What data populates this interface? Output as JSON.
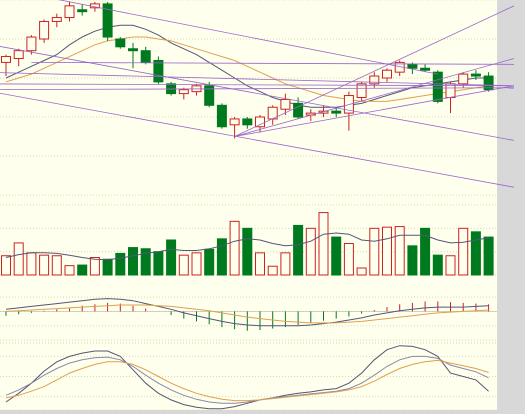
{
  "colors": {
    "background": "#ffffee",
    "frame": "#d8d8d8",
    "grid": "#d9d9b0",
    "up": "#cc2222",
    "down": "#007a1e",
    "ma_fast": "#555577",
    "ma_slow": "#e0a050",
    "trend_line": "#9966cc"
  },
  "chart_data": [
    {
      "type": "candlestick",
      "panel": "price",
      "title": "",
      "xlabel": "",
      "ylabel": "",
      "ylim": [
        0,
        100
      ],
      "grid": true,
      "legend": "none",
      "candles": [
        {
          "o": 68,
          "h": 72,
          "l": 61,
          "c": 71
        },
        {
          "o": 70,
          "h": 75,
          "l": 66,
          "c": 74
        },
        {
          "o": 74,
          "h": 82,
          "l": 72,
          "c": 81
        },
        {
          "o": 80,
          "h": 90,
          "l": 78,
          "c": 89
        },
        {
          "o": 89,
          "h": 93,
          "l": 86,
          "c": 91
        },
        {
          "o": 91,
          "h": 99,
          "l": 89,
          "c": 97
        },
        {
          "o": 95,
          "h": 98,
          "l": 92,
          "c": 94
        },
        {
          "o": 96,
          "h": 99,
          "l": 94,
          "c": 98
        },
        {
          "o": 98,
          "h": 99,
          "l": 79,
          "c": 81
        },
        {
          "o": 80,
          "h": 81,
          "l": 75,
          "c": 76
        },
        {
          "o": 75,
          "h": 78,
          "l": 65,
          "c": 74
        },
        {
          "o": 74,
          "h": 76,
          "l": 67,
          "c": 68
        },
        {
          "o": 69,
          "h": 71,
          "l": 57,
          "c": 58
        },
        {
          "o": 57,
          "h": 58,
          "l": 51,
          "c": 52
        },
        {
          "o": 52,
          "h": 55,
          "l": 49,
          "c": 54
        },
        {
          "o": 53,
          "h": 57,
          "l": 51,
          "c": 56
        },
        {
          "o": 56,
          "h": 58,
          "l": 45,
          "c": 46
        },
        {
          "o": 46,
          "h": 47,
          "l": 34,
          "c": 35
        },
        {
          "o": 36,
          "h": 40,
          "l": 29,
          "c": 39
        },
        {
          "o": 39,
          "h": 40,
          "l": 34,
          "c": 36
        },
        {
          "o": 35,
          "h": 41,
          "l": 32,
          "c": 40
        },
        {
          "o": 39,
          "h": 46,
          "l": 36,
          "c": 45
        },
        {
          "o": 44,
          "h": 52,
          "l": 41,
          "c": 49
        },
        {
          "o": 47,
          "h": 50,
          "l": 39,
          "c": 40
        },
        {
          "o": 41,
          "h": 44,
          "l": 38,
          "c": 42
        },
        {
          "o": 42,
          "h": 46,
          "l": 40,
          "c": 43
        },
        {
          "o": 43,
          "h": 45,
          "l": 40,
          "c": 42
        },
        {
          "o": 42,
          "h": 53,
          "l": 33,
          "c": 51
        },
        {
          "o": 50,
          "h": 58,
          "l": 48,
          "c": 57
        },
        {
          "o": 57,
          "h": 63,
          "l": 55,
          "c": 61
        },
        {
          "o": 60,
          "h": 65,
          "l": 58,
          "c": 64
        },
        {
          "o": 63,
          "h": 69,
          "l": 61,
          "c": 68
        },
        {
          "o": 67,
          "h": 68,
          "l": 62,
          "c": 65
        },
        {
          "o": 65,
          "h": 67,
          "l": 63,
          "c": 64
        },
        {
          "o": 63,
          "h": 64,
          "l": 47,
          "c": 48
        },
        {
          "o": 50,
          "h": 58,
          "l": 42,
          "c": 57
        },
        {
          "o": 57,
          "h": 63,
          "l": 55,
          "c": 62
        },
        {
          "o": 62,
          "h": 64,
          "l": 59,
          "c": 61
        },
        {
          "o": 61,
          "h": 63,
          "l": 53,
          "c": 54
        }
      ],
      "moving_averages": [
        {
          "values": [
            60,
            63,
            66,
            69,
            72,
            77,
            81,
            84,
            86,
            87,
            87,
            85,
            82,
            78,
            75,
            72,
            68,
            64,
            60,
            56,
            53,
            50,
            48,
            46,
            45,
            45,
            45,
            46,
            47,
            49,
            51,
            53,
            55,
            56,
            57,
            58,
            59,
            60,
            60
          ]
        },
        {
          "values": [
            58,
            60,
            62,
            65,
            68,
            71,
            74,
            77,
            79,
            80,
            81,
            81,
            80,
            79,
            77,
            75,
            73,
            71,
            69,
            66,
            63,
            60,
            57,
            55,
            53,
            51,
            50,
            49,
            48,
            48,
            48,
            49,
            50,
            51,
            52,
            53,
            54,
            55,
            56
          ]
        }
      ],
      "trend_lines": [
        {
          "points": [
            [
              -2,
              108
            ],
            [
              34,
              62
            ]
          ]
        },
        {
          "points": [
            [
              -2,
              78
            ],
            [
              40,
              28
            ]
          ]
        },
        {
          "points": [
            [
              -2,
              54
            ],
            [
              40,
              4
            ]
          ]
        },
        {
          "points": [
            [
              -2,
              63
            ],
            [
              40,
              56
            ]
          ]
        },
        {
          "points": [
            [
              -2,
              54
            ],
            [
              40,
              55
            ]
          ]
        },
        {
          "points": [
            [
              -2,
              57
            ],
            [
              40,
              56
            ]
          ]
        },
        {
          "points": [
            [
              18,
              30
            ],
            [
              40,
              97
            ]
          ]
        },
        {
          "points": [
            [
              18,
              30
            ],
            [
              40,
              70
            ]
          ]
        },
        {
          "points": [
            [
              18,
              30
            ],
            [
              40,
              56
            ]
          ]
        },
        {
          "points": [
            [
              2,
              68
            ],
            [
              40,
              67
            ]
          ]
        }
      ]
    },
    {
      "type": "bar",
      "panel": "volume",
      "title": "",
      "ylim": [
        0,
        120
      ],
      "values": [
        33,
        55,
        38,
        34,
        33,
        16,
        17,
        30,
        27,
        37,
        47,
        45,
        40,
        60,
        34,
        38,
        44,
        62,
        92,
        80,
        38,
        15,
        38,
        85,
        80,
        107,
        65,
        54,
        12,
        80,
        82,
        83,
        50,
        80,
        34,
        33,
        80,
        74,
        65
      ],
      "moving_average": [
        30,
        35,
        38,
        38,
        37,
        34,
        30,
        27,
        26,
        29,
        33,
        37,
        40,
        44,
        42,
        42,
        45,
        50,
        58,
        62,
        60,
        54,
        50,
        52,
        58,
        70,
        72,
        70,
        60,
        58,
        62,
        68,
        68,
        68,
        60,
        55,
        56,
        60,
        64
      ]
    },
    {
      "type": "bar",
      "panel": "macd",
      "title": "",
      "ylim": [
        -40,
        30
      ],
      "values": [
        -6,
        -4,
        -2,
        1,
        3,
        5,
        8,
        10,
        12,
        11,
        8,
        4,
        0,
        -5,
        -10,
        -14,
        -18,
        -22,
        -25,
        -27,
        -26,
        -24,
        -22,
        -19,
        -16,
        -13,
        -10,
        -7,
        -3,
        2,
        6,
        10,
        12,
        14,
        14,
        13,
        12,
        11,
        10
      ],
      "lines": [
        {
          "values": [
            3,
            5,
            7,
            9,
            11,
            13,
            15,
            17,
            18,
            17,
            15,
            11,
            7,
            3,
            -2,
            -6,
            -10,
            -14,
            -17,
            -19,
            -20,
            -20,
            -20,
            -20,
            -19,
            -17,
            -15,
            -12,
            -9,
            -5,
            -2,
            1,
            3,
            5,
            6,
            6,
            6,
            7,
            8
          ]
        },
        {
          "values": [
            0,
            1,
            2,
            3,
            4,
            5,
            6,
            7,
            8,
            9,
            9,
            9,
            8,
            7,
            5,
            3,
            1,
            -2,
            -5,
            -8,
            -10,
            -12,
            -14,
            -15,
            -16,
            -16,
            -16,
            -15,
            -14,
            -12,
            -10,
            -8,
            -6,
            -4,
            -2,
            -1,
            0,
            1,
            2
          ]
        }
      ]
    },
    {
      "type": "line",
      "panel": "kdj",
      "title": "",
      "ylim": [
        0,
        100
      ],
      "series": [
        {
          "values": [
            12,
            25,
            40,
            58,
            72,
            80,
            85,
            88,
            88,
            80,
            60,
            40,
            25,
            15,
            8,
            4,
            2,
            2,
            5,
            10,
            15,
            18,
            22,
            25,
            27,
            30,
            32,
            40,
            55,
            75,
            90,
            96,
            95,
            90,
            80,
            55,
            50,
            45,
            28
          ]
        },
        {
          "values": [
            22,
            30,
            40,
            52,
            62,
            70,
            75,
            78,
            79,
            75,
            65,
            52,
            40,
            30,
            22,
            16,
            12,
            10,
            10,
            12,
            15,
            18,
            20,
            22,
            24,
            26,
            28,
            32,
            40,
            52,
            65,
            75,
            80,
            80,
            77,
            67,
            62,
            57,
            48
          ]
        },
        {
          "values": [
            18,
            22,
            28,
            35,
            45,
            55,
            62,
            68,
            72,
            72,
            68,
            60,
            50,
            40,
            32,
            25,
            20,
            16,
            14,
            14,
            15,
            17,
            19,
            21,
            23,
            25,
            27,
            30,
            35,
            43,
            53,
            62,
            68,
            72,
            74,
            70,
            66,
            62,
            56
          ]
        }
      ]
    }
  ]
}
